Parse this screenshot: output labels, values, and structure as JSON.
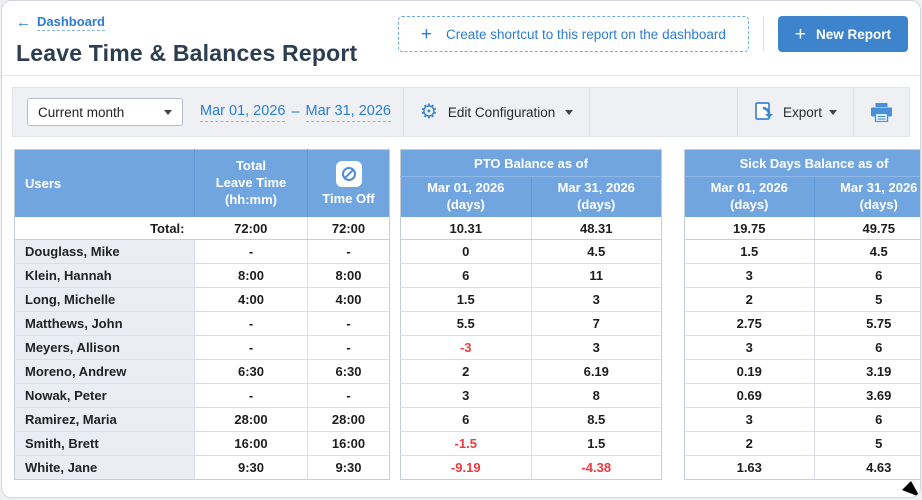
{
  "header": {
    "back_link": "Dashboard",
    "title": "Leave Time & Balances Report",
    "shortcut_button_label": "Create shortcut to this report on the dashboard",
    "new_report_label": "New Report",
    "plus_glyph": "+"
  },
  "toolbar": {
    "period_selected": "Current month",
    "date_from": "Mar 01, 2026",
    "date_separator": "–",
    "date_to": "Mar 31, 2026",
    "edit_configuration_label": "Edit Configuration",
    "export_label": "Export",
    "gear_glyph": "⚙"
  },
  "colors": {
    "header_blue": "#71a5e0",
    "accent_blue": "#2b7cd3",
    "negative_red": "#ee3a3e"
  },
  "table": {
    "headers": {
      "users": "Users",
      "total_leave_time": "Total\nLeave Time\n(hh:mm)",
      "time_off": "Time Off",
      "pto_group": "PTO Balance as of",
      "sick_group": "Sick Days Balance as of",
      "pto_start": "Mar 01, 2026\n(days)",
      "pto_end": "Mar 31, 2026\n(days)",
      "sick_start": "Mar 01, 2026\n(days)",
      "sick_end": "Mar 31, 2026\n(days)"
    },
    "total_row": {
      "label": "Total:",
      "total": "72:00",
      "time_off": "72:00",
      "pto_start": "10.31",
      "pto_end": "48.31",
      "sick_start": "19.75",
      "sick_end": "49.75"
    },
    "rows": [
      {
        "user": "Douglass, Mike",
        "total": "-",
        "time_off": "-",
        "pto_start": "0",
        "pto_end": "4.5",
        "sick_start": "1.5",
        "sick_end": "4.5"
      },
      {
        "user": "Klein, Hannah",
        "total": "8:00",
        "time_off": "8:00",
        "pto_start": "6",
        "pto_end": "11",
        "sick_start": "3",
        "sick_end": "6"
      },
      {
        "user": "Long, Michelle",
        "total": "4:00",
        "time_off": "4:00",
        "pto_start": "1.5",
        "pto_end": "3",
        "sick_start": "2",
        "sick_end": "5"
      },
      {
        "user": "Matthews, John",
        "total": "-",
        "time_off": "-",
        "pto_start": "5.5",
        "pto_end": "7",
        "sick_start": "2.75",
        "sick_end": "5.75"
      },
      {
        "user": "Meyers, Allison",
        "total": "-",
        "time_off": "-",
        "pto_start": "-3",
        "pto_end": "3",
        "sick_start": "3",
        "sick_end": "6"
      },
      {
        "user": "Moreno, Andrew",
        "total": "6:30",
        "time_off": "6:30",
        "pto_start": "2",
        "pto_end": "6.19",
        "sick_start": "0.19",
        "sick_end": "3.19"
      },
      {
        "user": "Nowak, Peter",
        "total": "-",
        "time_off": "-",
        "pto_start": "3",
        "pto_end": "8",
        "sick_start": "0.69",
        "sick_end": "3.69"
      },
      {
        "user": "Ramirez, Maria",
        "total": "28:00",
        "time_off": "28:00",
        "pto_start": "6",
        "pto_end": "8.5",
        "sick_start": "3",
        "sick_end": "6"
      },
      {
        "user": "Smith, Brett",
        "total": "16:00",
        "time_off": "16:00",
        "pto_start": "-1.5",
        "pto_end": "1.5",
        "sick_start": "2",
        "sick_end": "5"
      },
      {
        "user": "White, Jane",
        "total": "9:30",
        "time_off": "9:30",
        "pto_start": "-9.19",
        "pto_end": "-4.38",
        "sick_start": "1.63",
        "sick_end": "4.63"
      }
    ]
  }
}
